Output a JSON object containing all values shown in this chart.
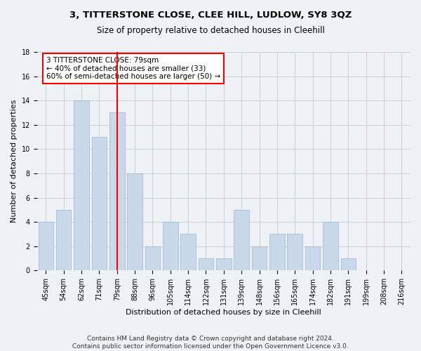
{
  "title": "3, TITTERSTONE CLOSE, CLEE HILL, LUDLOW, SY8 3QZ",
  "subtitle": "Size of property relative to detached houses in Cleehill",
  "xlabel": "Distribution of detached houses by size in Cleehill",
  "ylabel": "Number of detached properties",
  "categories": [
    "45sqm",
    "54sqm",
    "62sqm",
    "71sqm",
    "79sqm",
    "88sqm",
    "96sqm",
    "105sqm",
    "114sqm",
    "122sqm",
    "131sqm",
    "139sqm",
    "148sqm",
    "156sqm",
    "165sqm",
    "174sqm",
    "182sqm",
    "191sqm",
    "199sqm",
    "208sqm",
    "216sqm"
  ],
  "values": [
    4,
    5,
    14,
    11,
    13,
    8,
    2,
    4,
    3,
    1,
    1,
    5,
    2,
    3,
    3,
    2,
    4,
    1,
    0,
    0,
    0
  ],
  "bar_color": "#cad9ea",
  "bar_edgecolor": "#9ab5cc",
  "highlight_index": 4,
  "annotation_text": "3 TITTERSTONE CLOSE: 79sqm\n← 40% of detached houses are smaller (33)\n60% of semi-detached houses are larger (50) →",
  "annotation_box_color": "white",
  "annotation_box_edgecolor": "red",
  "vline_color": "red",
  "ylim": [
    0,
    18
  ],
  "yticks": [
    0,
    2,
    4,
    6,
    8,
    10,
    12,
    14,
    16,
    18
  ],
  "footer": "Contains HM Land Registry data © Crown copyright and database right 2024.\nContains public sector information licensed under the Open Government Licence v3.0.",
  "background_color": "#eef2f7",
  "grid_color": "#c8d0da",
  "title_fontsize": 9.5,
  "subtitle_fontsize": 8.5,
  "axis_label_fontsize": 8,
  "tick_fontsize": 7,
  "annotation_fontsize": 7.5,
  "footer_fontsize": 6.5
}
